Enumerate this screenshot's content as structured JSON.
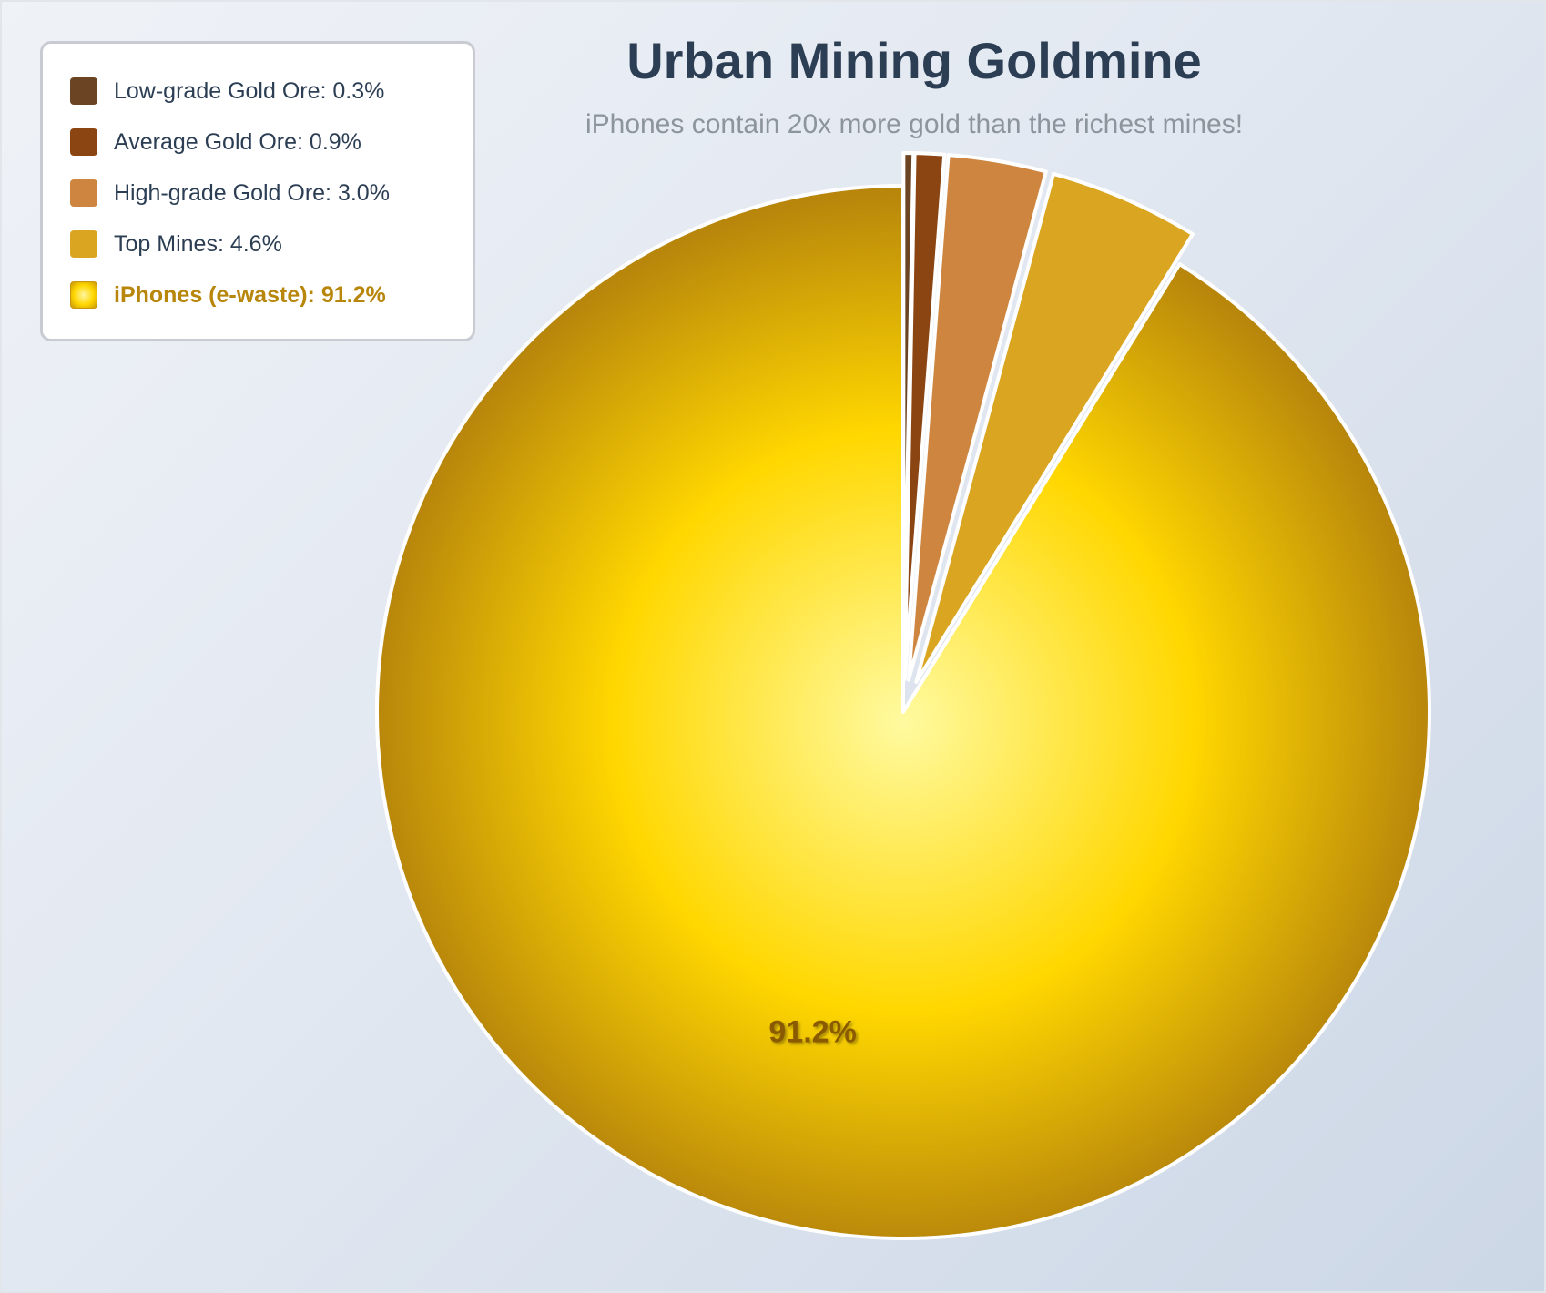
{
  "chart_data": {
    "type": "pie",
    "title": "Urban Mining Goldmine",
    "subtitle": "iPhones contain 20x more gold than the richest mines!",
    "legend_position": "top-left",
    "slices": [
      {
        "label": "Low-grade Gold Ore",
        "value": 0.3,
        "legend_text": "Low-grade Gold Ore: 0.3%",
        "color": "#6b4423",
        "exploded": true
      },
      {
        "label": "Average Gold Ore",
        "value": 0.9,
        "legend_text": "Average Gold Ore: 0.9%",
        "color": "#8b4513",
        "exploded": true
      },
      {
        "label": "High-grade Gold Ore",
        "value": 3.0,
        "legend_text": "High-grade Gold Ore: 3.0%",
        "color": "#cd853f",
        "exploded": true
      },
      {
        "label": "Top Mines",
        "value": 4.6,
        "legend_text": "Top Mines: 4.6%",
        "color": "#daa520",
        "exploded": true
      },
      {
        "label": "iPhones (e-waste)",
        "value": 91.2,
        "legend_text": "iPhones (e-waste): 91.2%",
        "color": "#ffd700",
        "exploded": false,
        "highlight": true,
        "highlight_text_color": "#b8860b",
        "data_label": "91.2%"
      }
    ]
  }
}
